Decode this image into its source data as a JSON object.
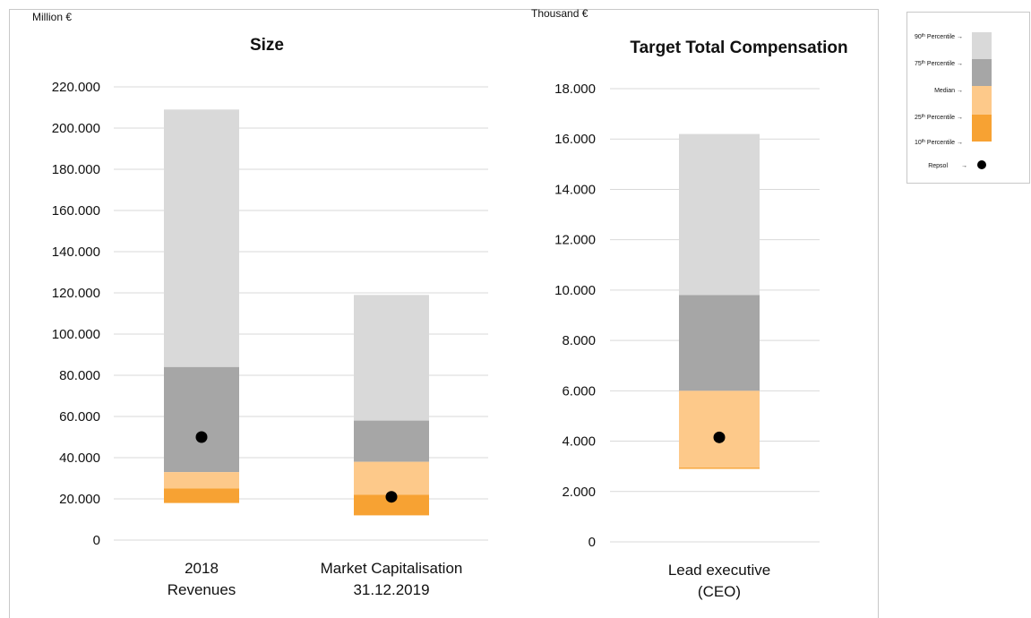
{
  "legend": {
    "items": [
      {
        "label": "90",
        "sup": "th",
        "rest": " Percentile →",
        "color": "#d9d9d9"
      },
      {
        "label": "75",
        "sup": "th",
        "rest": " Percentile →",
        "color": "#a6a6a6"
      },
      {
        "label": "Median",
        "sup": "",
        "rest": "   →",
        "color": "#fdc98a"
      },
      {
        "label": "25",
        "sup": "th",
        "rest": " Percentile →",
        "color": "#fdc98a"
      },
      {
        "label": "10",
        "sup": "th",
        "rest": " Percentile →",
        "color": "#f7a233"
      }
    ],
    "marker_label": "Repsol",
    "marker_arrow": "→"
  },
  "colors": {
    "p75_p90": "#d9d9d9",
    "median_p75": "#a6a6a6",
    "p25_median": "#fdc98a",
    "p10_p25": "#f7a233",
    "marker": "#000000",
    "grid": "#d9d9d9"
  },
  "chart_data": [
    {
      "type": "bar",
      "subtype": "floating-stacked-percentile",
      "title": "Size",
      "ylabel": "Million €",
      "ylim": [
        0,
        220000
      ],
      "yticks": [
        0,
        20000,
        40000,
        60000,
        80000,
        100000,
        120000,
        140000,
        160000,
        180000,
        200000,
        220000
      ],
      "ytick_labels": [
        "0",
        "20.000",
        "40.000",
        "60.000",
        "80.000",
        "100.000",
        "120.000",
        "140.000",
        "160.000",
        "180.000",
        "200.000",
        "220.000"
      ],
      "categories": [
        [
          "2018",
          "Revenues"
        ],
        [
          "Market Capitalisation",
          "31.12.2019"
        ]
      ],
      "p10": [
        18000,
        12000
      ],
      "p25": [
        25000,
        22000
      ],
      "median": [
        33000,
        38000
      ],
      "p75": [
        84000,
        58000
      ],
      "p90": [
        209000,
        119000
      ],
      "repsol": [
        50000,
        21000
      ],
      "grid": true
    },
    {
      "type": "bar",
      "subtype": "floating-stacked-percentile",
      "title": "Target Total Compensation",
      "ylabel": "Thousand €",
      "ylim": [
        0,
        18000
      ],
      "yticks": [
        0,
        2000,
        4000,
        6000,
        8000,
        10000,
        12000,
        14000,
        16000,
        18000
      ],
      "ytick_labels": [
        "0",
        "2.000",
        "4.000",
        "6.000",
        "8.000",
        "10.000",
        "12.000",
        "14.000",
        "16.000",
        "18.000"
      ],
      "categories": [
        [
          "Lead executive",
          "(CEO)"
        ]
      ],
      "p10": [
        2900
      ],
      "p25": [
        2950
      ],
      "median": [
        6000
      ],
      "p75": [
        9800
      ],
      "p90": [
        16200
      ],
      "repsol": [
        4150
      ],
      "grid": true
    }
  ]
}
